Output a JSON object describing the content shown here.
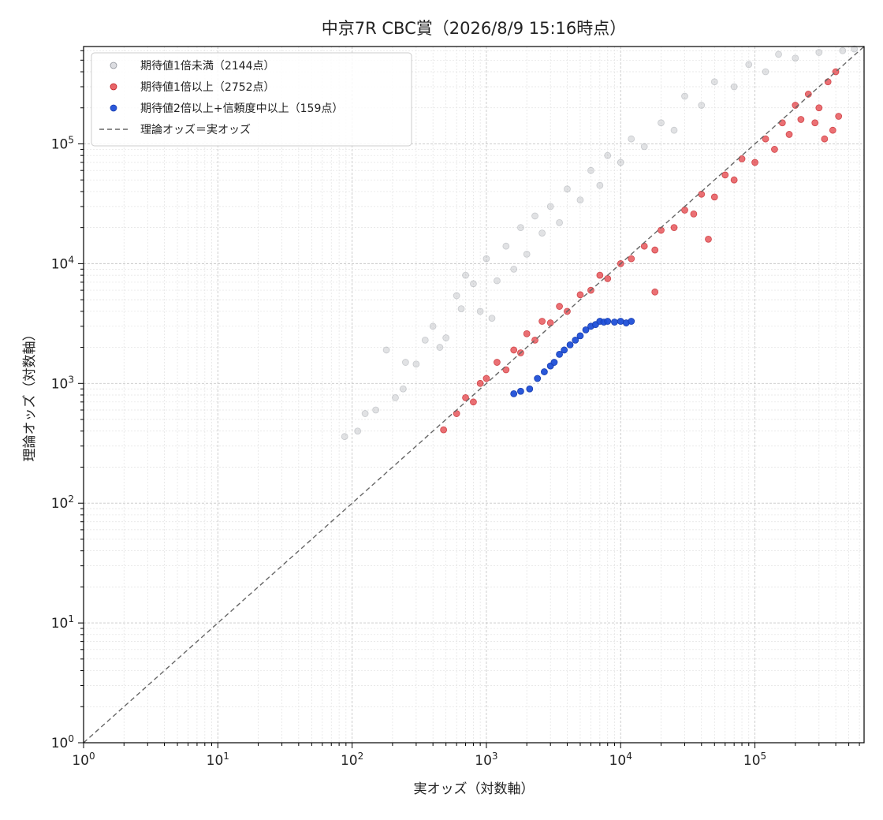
{
  "chart_data": {
    "type": "scatter",
    "title": "中京7R CBC賞（2026/8/9 15:16時点）",
    "xlabel": "実オッズ（対数軸）",
    "ylabel": "理論オッズ（対数軸）",
    "xscale": "log",
    "yscale": "log",
    "xlim": [
      1,
      650000
    ],
    "ylim": [
      1,
      650000
    ],
    "grid": true,
    "legend_position": "top-left",
    "x_tick_labels": [
      "10^0",
      "10^1",
      "10^2",
      "10^3",
      "10^4",
      "10^5"
    ],
    "y_tick_labels": [
      "10^0",
      "10^1",
      "10^2",
      "10^3",
      "10^4",
      "10^5"
    ],
    "legend": [
      {
        "label": "期待値1倍未満（2144点）",
        "color": "#a8abb3",
        "marker": "circle"
      },
      {
        "label": "期待値1倍以上（2752点）",
        "color": "#e0242a",
        "marker": "circle"
      },
      {
        "label": "期待値2倍以上+信頼度中以上（159点）",
        "color": "#1f4fd8",
        "marker": "circle"
      },
      {
        "label": "理論オッズ＝実オッズ",
        "color": "#666666",
        "marker": "dashed-line"
      }
    ],
    "series": [
      {
        "name": "期待値1倍未満（2144点）",
        "color": "#a8abb3",
        "points": [
          [
            88,
            360
          ],
          [
            110,
            400
          ],
          [
            125,
            560
          ],
          [
            150,
            600
          ],
          [
            180,
            1900
          ],
          [
            210,
            760
          ],
          [
            240,
            900
          ],
          [
            300,
            1450
          ],
          [
            350,
            2300
          ],
          [
            400,
            3000
          ],
          [
            500,
            2400
          ],
          [
            600,
            5400
          ],
          [
            650,
            4200
          ],
          [
            700,
            8000
          ],
          [
            800,
            6800
          ],
          [
            900,
            4000
          ],
          [
            1000,
            11000
          ],
          [
            1200,
            7200
          ],
          [
            1400,
            14000
          ],
          [
            1600,
            9000
          ],
          [
            1800,
            20000
          ],
          [
            2000,
            12000
          ],
          [
            2300,
            25000
          ],
          [
            2600,
            18000
          ],
          [
            3000,
            30000
          ],
          [
            3500,
            22000
          ],
          [
            4000,
            42000
          ],
          [
            5000,
            34000
          ],
          [
            6000,
            60000
          ],
          [
            7000,
            45000
          ],
          [
            8000,
            80000
          ],
          [
            10000,
            70000
          ],
          [
            12000,
            110000
          ],
          [
            15000,
            95000
          ],
          [
            20000,
            150000
          ],
          [
            25000,
            130000
          ],
          [
            30000,
            250000
          ],
          [
            40000,
            210000
          ],
          [
            50000,
            330000
          ],
          [
            70000,
            300000
          ],
          [
            90000,
            460000
          ],
          [
            120000,
            400000
          ],
          [
            150000,
            560000
          ],
          [
            200000,
            520000
          ],
          [
            300000,
            580000
          ],
          [
            450000,
            600000
          ],
          [
            550000,
            620000
          ],
          [
            250,
            1500
          ],
          [
            450,
            2000
          ],
          [
            1100,
            3500
          ]
        ]
      },
      {
        "name": "期待値1倍以上（2752点）",
        "color": "#e0242a",
        "points": [
          [
            480,
            410
          ],
          [
            600,
            560
          ],
          [
            700,
            760
          ],
          [
            800,
            700
          ],
          [
            900,
            1000
          ],
          [
            1000,
            1100
          ],
          [
            1200,
            1500
          ],
          [
            1400,
            1300
          ],
          [
            1600,
            1900
          ],
          [
            1800,
            1800
          ],
          [
            2000,
            2600
          ],
          [
            2300,
            2300
          ],
          [
            2600,
            3300
          ],
          [
            3000,
            3200
          ],
          [
            3500,
            4400
          ],
          [
            4000,
            4000
          ],
          [
            5000,
            5500
          ],
          [
            6000,
            6000
          ],
          [
            7000,
            8000
          ],
          [
            8000,
            7500
          ],
          [
            10000,
            10000
          ],
          [
            12000,
            11000
          ],
          [
            15000,
            14000
          ],
          [
            18000,
            13000
          ],
          [
            20000,
            19000
          ],
          [
            25000,
            20000
          ],
          [
            30000,
            28000
          ],
          [
            35000,
            26000
          ],
          [
            40000,
            38000
          ],
          [
            50000,
            36000
          ],
          [
            60000,
            55000
          ],
          [
            70000,
            50000
          ],
          [
            80000,
            75000
          ],
          [
            100000,
            70000
          ],
          [
            120000,
            110000
          ],
          [
            140000,
            90000
          ],
          [
            160000,
            150000
          ],
          [
            180000,
            120000
          ],
          [
            200000,
            210000
          ],
          [
            220000,
            160000
          ],
          [
            250000,
            260000
          ],
          [
            280000,
            150000
          ],
          [
            300000,
            200000
          ],
          [
            330000,
            110000
          ],
          [
            350000,
            330000
          ],
          [
            380000,
            130000
          ],
          [
            400000,
            400000
          ],
          [
            420000,
            170000
          ],
          [
            18000,
            5800
          ],
          [
            45000,
            16000
          ]
        ]
      },
      {
        "name": "期待値2倍以上+信頼度中以上（159点）",
        "color": "#1f4fd8",
        "points": [
          [
            1600,
            820
          ],
          [
            1800,
            860
          ],
          [
            2100,
            900
          ],
          [
            2400,
            1100
          ],
          [
            2700,
            1250
          ],
          [
            3000,
            1400
          ],
          [
            3200,
            1500
          ],
          [
            3500,
            1750
          ],
          [
            3800,
            1900
          ],
          [
            4200,
            2100
          ],
          [
            4600,
            2300
          ],
          [
            5000,
            2500
          ],
          [
            5500,
            2800
          ],
          [
            6000,
            3000
          ],
          [
            6500,
            3100
          ],
          [
            7000,
            3300
          ],
          [
            7500,
            3250
          ],
          [
            8000,
            3300
          ],
          [
            9000,
            3250
          ],
          [
            10000,
            3300
          ],
          [
            11000,
            3200
          ],
          [
            12000,
            3300
          ]
        ]
      }
    ]
  }
}
